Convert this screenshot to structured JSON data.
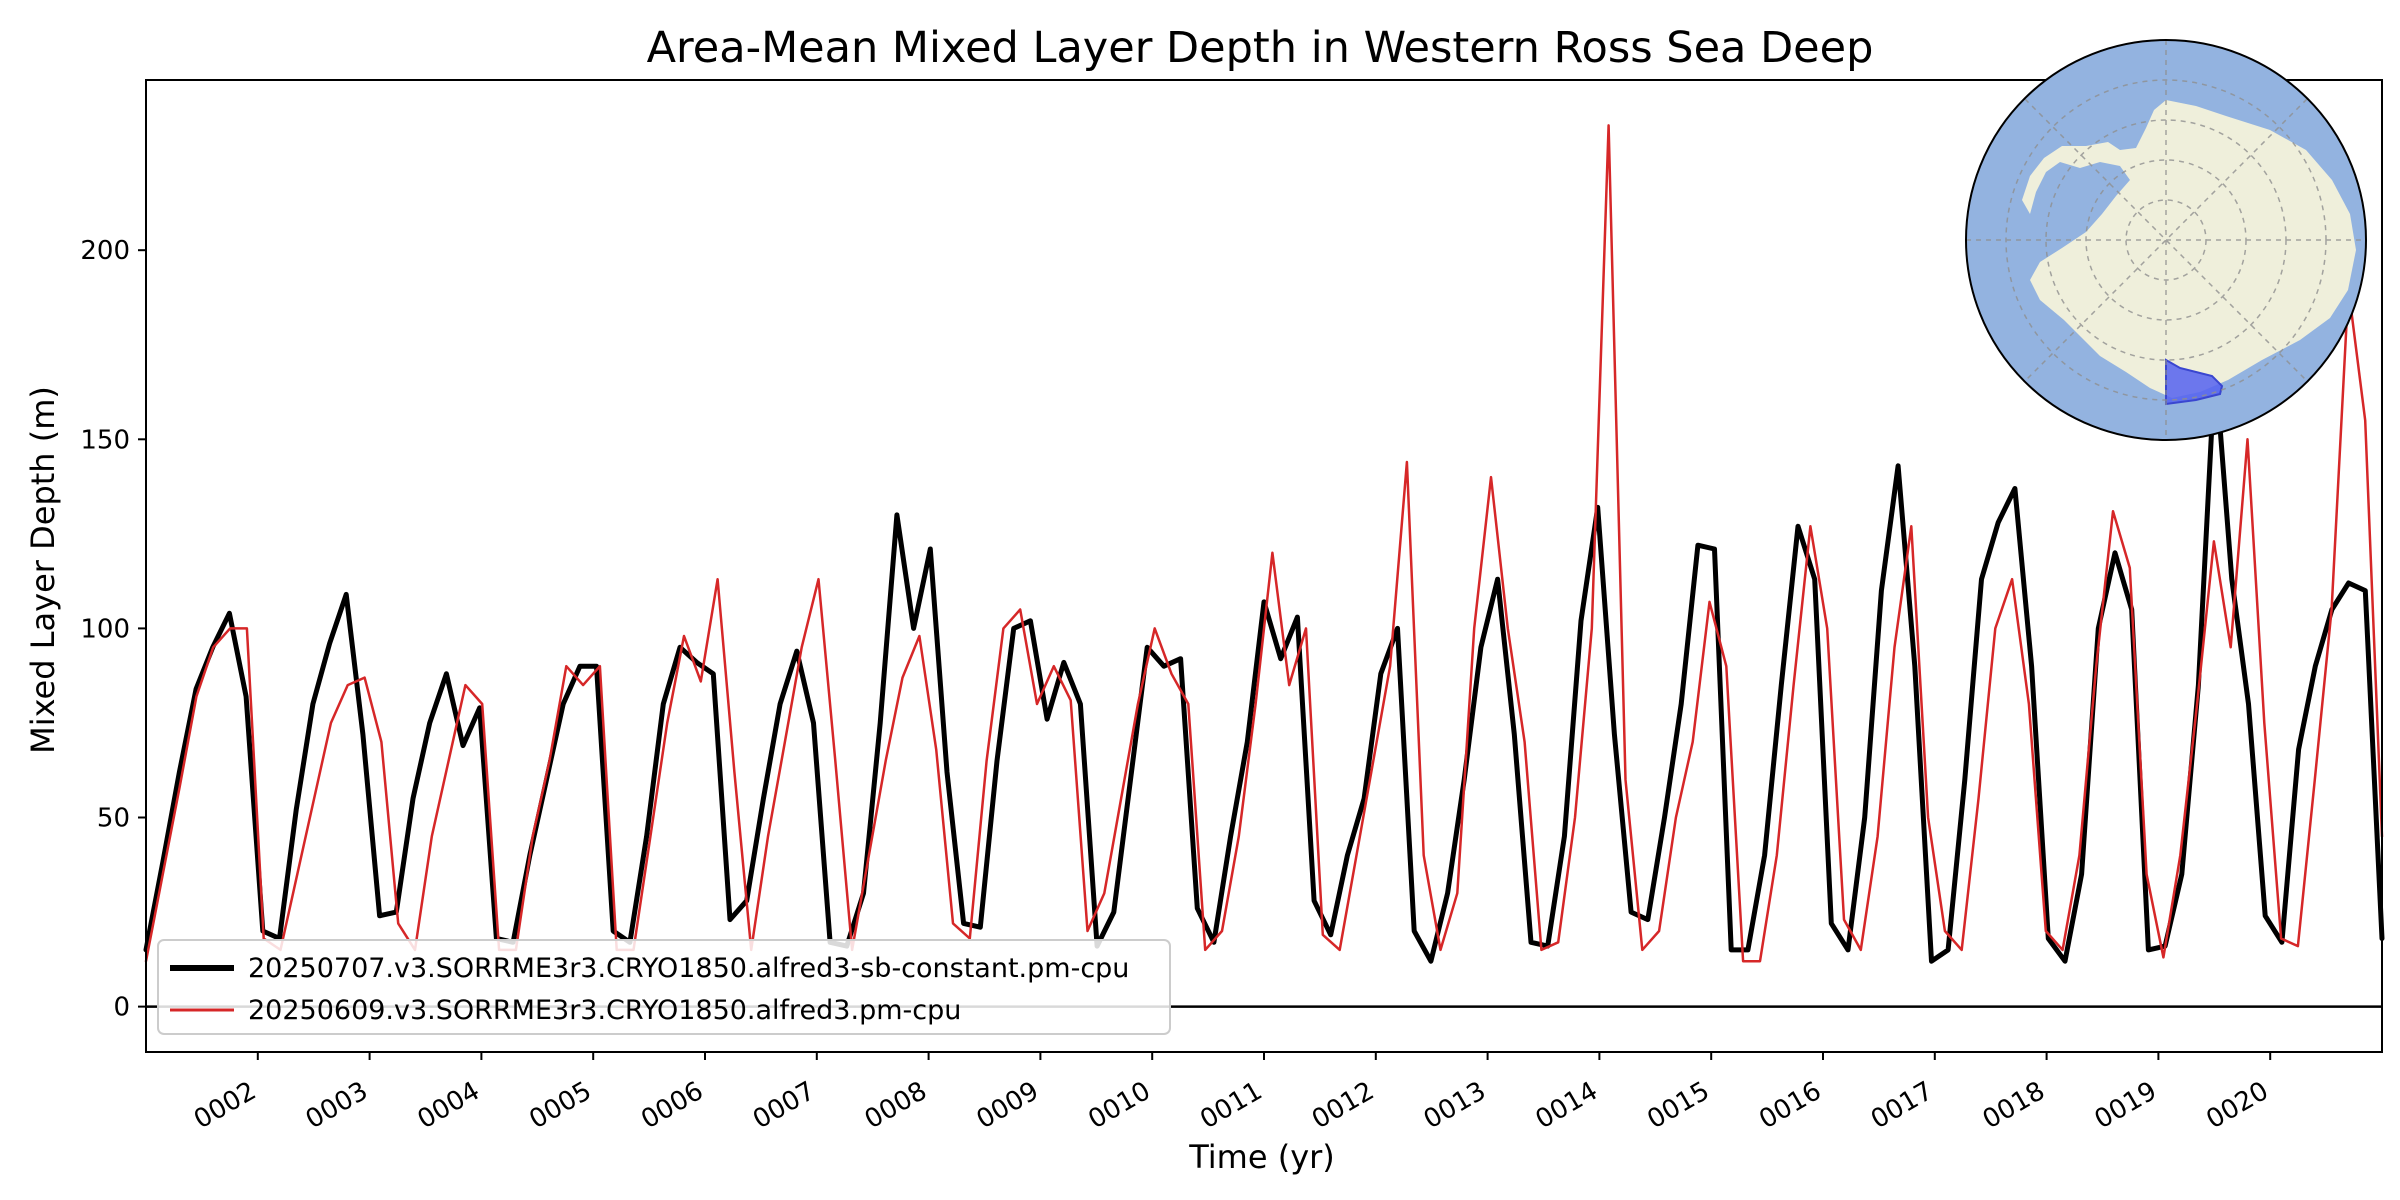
{
  "chart_data": {
    "type": "line",
    "title": "Area-Mean Mixed Layer Depth in Western Ross Sea Deep",
    "xlabel": "Time (yr)",
    "ylabel": "Mixed Layer Depth (m)",
    "xlim": [
      1.0,
      21.0
    ],
    "ylim": [
      -12,
      245
    ],
    "x_ticks": [
      2,
      3,
      4,
      5,
      6,
      7,
      8,
      9,
      10,
      11,
      12,
      13,
      14,
      15,
      16,
      17,
      18,
      19,
      20
    ],
    "x_tick_labels": [
      "0002",
      "0003",
      "0004",
      "0005",
      "0006",
      "0007",
      "0008",
      "0009",
      "0010",
      "0011",
      "0012",
      "0013",
      "0014",
      "0015",
      "0016",
      "0017",
      "0018",
      "0019",
      "0020"
    ],
    "y_ticks": [
      0,
      50,
      100,
      150,
      200
    ],
    "y_tick_labels": [
      "0",
      "50",
      "100",
      "150",
      "200"
    ],
    "zero_line": 0,
    "grid": false,
    "legend_position": "lower-left",
    "series": [
      {
        "name": "20250707.v3.SORRME3r3.CRYO1850.alfred3-sb-constant.pm-cpu",
        "color": "#000000",
        "values": [
          15,
          38,
          62,
          84,
          95,
          104,
          82,
          20,
          18,
          52,
          80,
          96,
          109,
          72,
          24,
          25,
          55,
          75,
          88,
          69,
          79,
          18,
          17,
          40,
          60,
          80,
          90,
          90,
          20,
          17,
          45,
          80,
          95,
          91,
          88,
          23,
          28,
          55,
          80,
          94,
          75,
          17,
          16,
          30,
          75,
          130,
          100,
          121,
          62,
          22,
          21,
          65,
          100,
          102,
          76,
          91,
          80,
          16,
          25,
          60,
          95,
          90,
          92,
          26,
          17,
          45,
          70,
          107,
          92,
          103,
          28,
          19,
          40,
          55,
          88,
          100,
          20,
          12,
          30,
          60,
          95,
          113,
          72,
          17,
          16,
          45,
          102,
          132,
          72,
          25,
          23,
          50,
          80,
          122,
          121,
          15,
          15,
          40,
          85,
          127,
          113,
          22,
          15,
          50,
          110,
          143,
          90,
          12,
          15,
          60,
          113,
          128,
          137,
          90,
          18,
          12,
          35,
          100,
          120,
          105,
          15,
          16,
          35,
          85,
          170,
          113,
          80,
          24,
          17,
          68,
          90,
          105,
          112,
          110,
          18
        ]
      },
      {
        "name": "20250609.v3.SORRME3r3.CRYO1850.alfred3.pm-cpu",
        "color": "#d62728",
        "values": [
          12,
          35,
          58,
          82,
          95,
          100,
          100,
          18,
          15,
          35,
          55,
          75,
          85,
          87,
          70,
          22,
          15,
          45,
          65,
          85,
          80,
          15,
          15,
          45,
          65,
          90,
          85,
          90,
          15,
          15,
          45,
          75,
          98,
          86,
          113,
          62,
          15,
          45,
          70,
          95,
          113,
          65,
          15,
          40,
          65,
          87,
          98,
          68,
          22,
          18,
          65,
          100,
          105,
          80,
          90,
          81,
          20,
          30,
          55,
          80,
          100,
          88,
          80,
          15,
          20,
          45,
          80,
          120,
          85,
          100,
          19,
          15,
          40,
          65,
          90,
          144,
          40,
          15,
          30,
          100,
          140,
          100,
          70,
          15,
          17,
          50,
          100,
          233,
          60,
          15,
          20,
          50,
          70,
          107,
          90,
          12,
          12,
          40,
          85,
          127,
          100,
          23,
          15,
          45,
          95,
          127,
          50,
          20,
          15,
          55,
          100,
          113,
          80,
          20,
          15,
          40,
          90,
          131,
          116,
          35,
          13,
          40,
          80,
          123,
          95,
          150,
          75,
          18,
          16,
          60,
          105,
          190,
          155,
          45
        ]
      }
    ]
  },
  "inset_map": {
    "description_icon": "south-polar-map-icon",
    "ocean_color": "#93b3e0",
    "land_color": "#efefdb",
    "region_color": "#5561f0"
  }
}
